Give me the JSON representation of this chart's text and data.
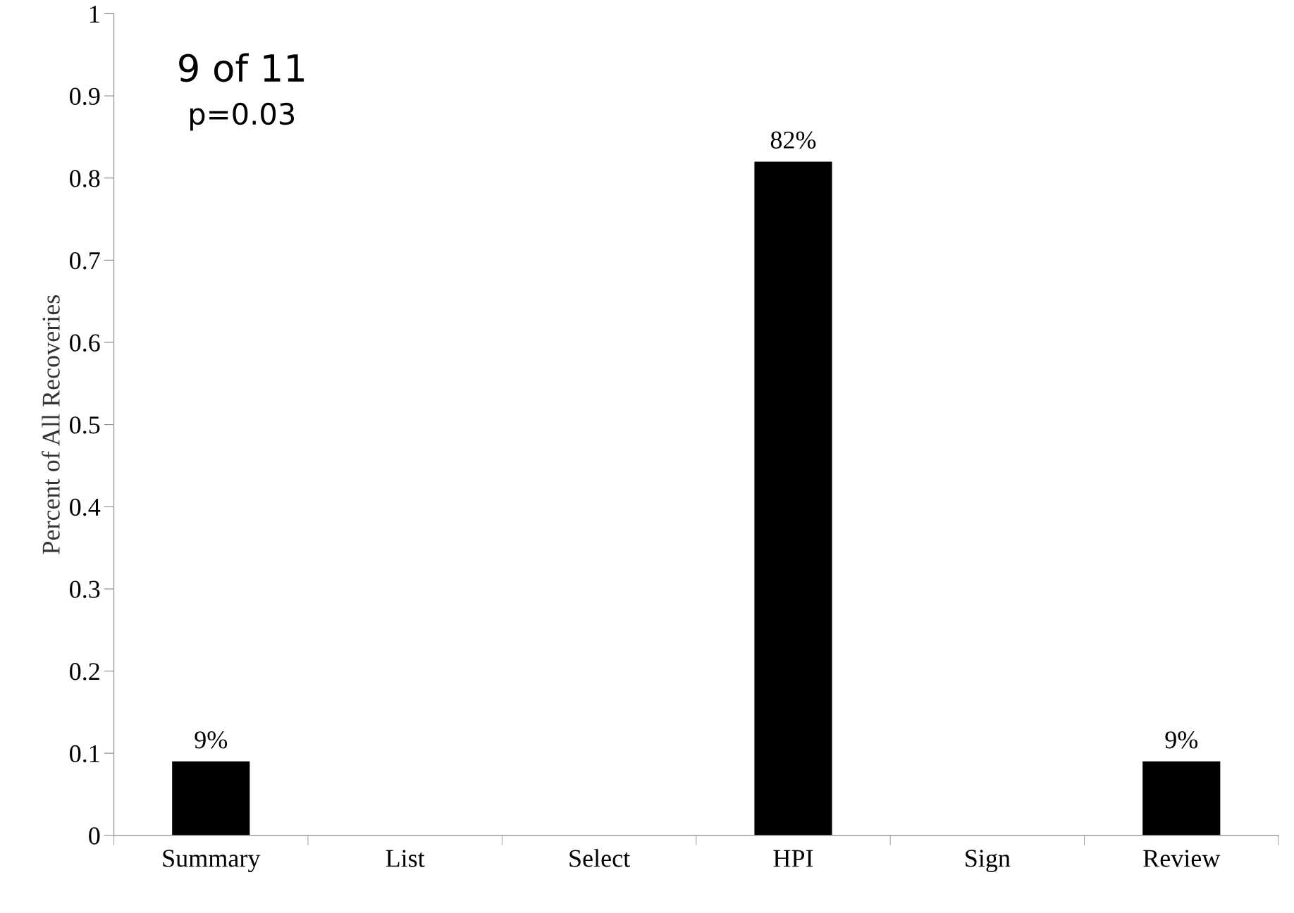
{
  "chart_data": {
    "type": "bar",
    "ylabel": "Percent of All Recoveries",
    "categories": [
      "Summary",
      "List",
      "Select",
      "HPI",
      "Sign",
      "Review"
    ],
    "values": [
      0.09,
      0,
      0,
      0.82,
      0,
      0.09
    ],
    "value_labels": [
      "9%",
      null,
      null,
      "82%",
      null,
      "9%"
    ],
    "color": "#000000",
    "ylim": [
      0,
      1
    ],
    "yticks": [
      0,
      0.1,
      0.2,
      0.3,
      0.4,
      0.5,
      0.6,
      0.7,
      0.8,
      0.9,
      1
    ],
    "annotations": [
      "9 of 11",
      "p=0.03"
    ],
    "grid": false,
    "legend": false
  }
}
